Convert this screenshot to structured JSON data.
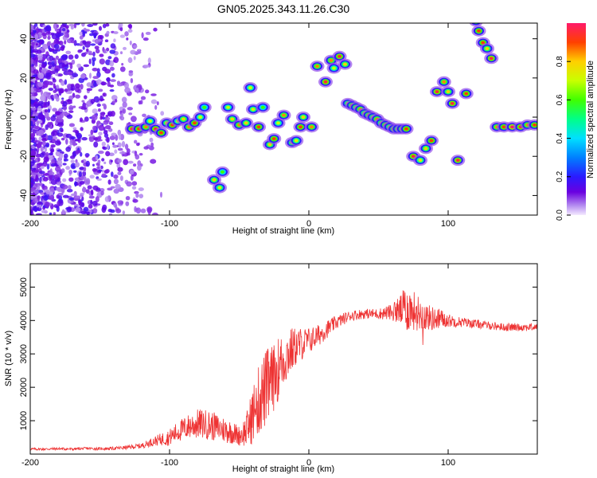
{
  "title": "GN05.2025.343.11.26.C30",
  "colorbar": {
    "label": "Normalized spectral amplitude",
    "ticks": [
      "0.0",
      "0.2",
      "0.4",
      "0.6",
      "0.8"
    ],
    "tick_values": [
      0.0,
      0.2,
      0.4,
      0.6,
      0.8
    ],
    "range": [
      0,
      1
    ]
  },
  "chart_data": [
    {
      "type": "heatmap",
      "title": "GN05.2025.343.11.26.C30",
      "xlabel": "Height of straight line (km)",
      "ylabel": "Frequency (Hz)",
      "xlim": [
        -200,
        164
      ],
      "ylim": [
        -50,
        48
      ],
      "xticks": [
        -200,
        -100,
        0,
        100
      ],
      "xtick_labels": [
        "-200",
        "-100",
        "0",
        "100"
      ],
      "yticks": [
        -40,
        -20,
        0,
        20,
        40
      ],
      "ytick_labels": [
        "-40",
        "-20",
        "0",
        "20",
        "40"
      ],
      "colorscale": "rainbow",
      "blobs": [
        {
          "x": -127,
          "y": -6,
          "a": 0.95
        },
        {
          "x": -122,
          "y": -6,
          "a": 0.9
        },
        {
          "x": -117,
          "y": -5,
          "a": 0.85
        },
        {
          "x": -114,
          "y": -2,
          "a": 0.7
        },
        {
          "x": -110,
          "y": -6,
          "a": 0.95
        },
        {
          "x": -106,
          "y": -8,
          "a": 0.9
        },
        {
          "x": -102,
          "y": -3,
          "a": 0.8
        },
        {
          "x": -98,
          "y": -4,
          "a": 0.9
        },
        {
          "x": -94,
          "y": -2,
          "a": 0.7
        },
        {
          "x": -90,
          "y": -1,
          "a": 0.8
        },
        {
          "x": -86,
          "y": -5,
          "a": 0.85
        },
        {
          "x": -82,
          "y": -3,
          "a": 0.9
        },
        {
          "x": -78,
          "y": 0,
          "a": 0.7
        },
        {
          "x": -75,
          "y": 5,
          "a": 0.6
        },
        {
          "x": -68,
          "y": -32,
          "a": 0.8
        },
        {
          "x": -64,
          "y": -36,
          "a": 0.75
        },
        {
          "x": -62,
          "y": -28,
          "a": 0.6
        },
        {
          "x": -58,
          "y": 5,
          "a": 0.7
        },
        {
          "x": -55,
          "y": -1,
          "a": 0.8
        },
        {
          "x": -50,
          "y": -4,
          "a": 0.85
        },
        {
          "x": -45,
          "y": -3,
          "a": 0.8
        },
        {
          "x": -42,
          "y": 15,
          "a": 0.7
        },
        {
          "x": -40,
          "y": 4,
          "a": 0.75
        },
        {
          "x": -36,
          "y": -5,
          "a": 0.9
        },
        {
          "x": -33,
          "y": 5,
          "a": 0.6
        },
        {
          "x": -28,
          "y": -14,
          "a": 0.8
        },
        {
          "x": -25,
          "y": -11,
          "a": 0.9
        },
        {
          "x": -22,
          "y": -3,
          "a": 0.7
        },
        {
          "x": -18,
          "y": 1,
          "a": 0.85
        },
        {
          "x": -12,
          "y": -13,
          "a": 0.8
        },
        {
          "x": -9,
          "y": -12,
          "a": 0.75
        },
        {
          "x": -6,
          "y": -5,
          "a": 0.9
        },
        {
          "x": -4,
          "y": 0,
          "a": 0.8
        },
        {
          "x": 2,
          "y": -5,
          "a": 0.85
        },
        {
          "x": 6,
          "y": 26,
          "a": 0.85
        },
        {
          "x": 12,
          "y": 18,
          "a": 0.95
        },
        {
          "x": 16,
          "y": 29,
          "a": 0.85
        },
        {
          "x": 18,
          "y": 25,
          "a": 0.7
        },
        {
          "x": 22,
          "y": 31,
          "a": 0.95
        },
        {
          "x": 26,
          "y": 27,
          "a": 0.8
        },
        {
          "x": 28,
          "y": 7,
          "a": 0.8
        },
        {
          "x": 31,
          "y": 6,
          "a": 0.85
        },
        {
          "x": 34,
          "y": 5,
          "a": 0.8
        },
        {
          "x": 37,
          "y": 4,
          "a": 0.85
        },
        {
          "x": 40,
          "y": 2,
          "a": 0.8
        },
        {
          "x": 43,
          "y": 1,
          "a": 0.85
        },
        {
          "x": 46,
          "y": 0,
          "a": 0.8
        },
        {
          "x": 49,
          "y": -1,
          "a": 0.85
        },
        {
          "x": 52,
          "y": -3,
          "a": 0.8
        },
        {
          "x": 55,
          "y": -4,
          "a": 0.85
        },
        {
          "x": 58,
          "y": -5,
          "a": 0.8
        },
        {
          "x": 61,
          "y": -6,
          "a": 0.85
        },
        {
          "x": 64,
          "y": -6,
          "a": 0.8
        },
        {
          "x": 67,
          "y": -6,
          "a": 0.85
        },
        {
          "x": 70,
          "y": -6,
          "a": 0.9
        },
        {
          "x": 75,
          "y": -20,
          "a": 0.95
        },
        {
          "x": 80,
          "y": -22,
          "a": 0.75
        },
        {
          "x": 84,
          "y": -16,
          "a": 0.8
        },
        {
          "x": 88,
          "y": -12,
          "a": 0.9
        },
        {
          "x": 92,
          "y": 13,
          "a": 0.95
        },
        {
          "x": 97,
          "y": 18,
          "a": 0.85
        },
        {
          "x": 100,
          "y": 13,
          "a": 0.8
        },
        {
          "x": 103,
          "y": 7,
          "a": 0.95
        },
        {
          "x": 107,
          "y": -22,
          "a": 0.95
        },
        {
          "x": 113,
          "y": 12,
          "a": 0.9
        },
        {
          "x": 120,
          "y": 49,
          "a": 0.8
        },
        {
          "x": 122,
          "y": 44,
          "a": 0.9
        },
        {
          "x": 125,
          "y": 38,
          "a": 0.9
        },
        {
          "x": 128,
          "y": 35,
          "a": 0.8
        },
        {
          "x": 131,
          "y": 30,
          "a": 0.95
        },
        {
          "x": 135,
          "y": -5,
          "a": 0.85
        },
        {
          "x": 140,
          "y": -5,
          "a": 0.9
        },
        {
          "x": 146,
          "y": -5,
          "a": 1.0
        },
        {
          "x": 152,
          "y": -5,
          "a": 0.95
        },
        {
          "x": 157,
          "y": -4,
          "a": 0.85
        },
        {
          "x": 162,
          "y": -4,
          "a": 0.9
        }
      ]
    },
    {
      "type": "line",
      "xlabel": "Height of straight line (km)",
      "ylabel": "SNR (10 * v/v)",
      "xlim": [
        -200,
        164
      ],
      "ylim": [
        0,
        5700
      ],
      "xticks": [
        -200,
        -100,
        0,
        100
      ],
      "xtick_labels": [
        "-200",
        "-100",
        "0",
        "100"
      ],
      "yticks": [
        1000,
        2000,
        3000,
        4000,
        5000
      ],
      "ytick_labels": [
        "1000",
        "2000",
        "3000",
        "4000",
        "5000"
      ],
      "series": [
        {
          "name": "SNR",
          "color": "#ee3333",
          "x": [
            -200,
            -190,
            -180,
            -170,
            -160,
            -150,
            -140,
            -130,
            -120,
            -110,
            -100,
            -95,
            -90,
            -85,
            -80,
            -75,
            -70,
            -65,
            -60,
            -55,
            -50,
            -45,
            -40,
            -35,
            -30,
            -25,
            -20,
            -15,
            -10,
            -5,
            0,
            5,
            10,
            15,
            20,
            25,
            30,
            40,
            50,
            60,
            65,
            70,
            75,
            80,
            85,
            90,
            95,
            100,
            110,
            120,
            130,
            140,
            150,
            164
          ],
          "values": [
            150,
            150,
            160,
            150,
            170,
            160,
            170,
            200,
            250,
            400,
            500,
            650,
            750,
            850,
            900,
            900,
            850,
            780,
            720,
            650,
            550,
            700,
            1200,
            1700,
            2000,
            2300,
            2700,
            3000,
            3200,
            3300,
            3400,
            3500,
            3650,
            3800,
            3950,
            4050,
            4150,
            4200,
            4200,
            4250,
            4300,
            4350,
            4300,
            4200,
            4100,
            4050,
            4050,
            4000,
            3950,
            3900,
            3850,
            3800,
            3800,
            3800
          ],
          "noise": [
            40,
            40,
            40,
            40,
            40,
            40,
            50,
            60,
            80,
            150,
            250,
            300,
            350,
            400,
            450,
            450,
            450,
            400,
            400,
            350,
            300,
            500,
            900,
            1100,
            1200,
            1000,
            900,
            800,
            600,
            500,
            400,
            350,
            300,
            250,
            200,
            180,
            160,
            150,
            160,
            250,
            450,
            700,
            600,
            500,
            400,
            350,
            300,
            200,
            150,
            130,
            120,
            120,
            120,
            120
          ]
        }
      ]
    }
  ]
}
